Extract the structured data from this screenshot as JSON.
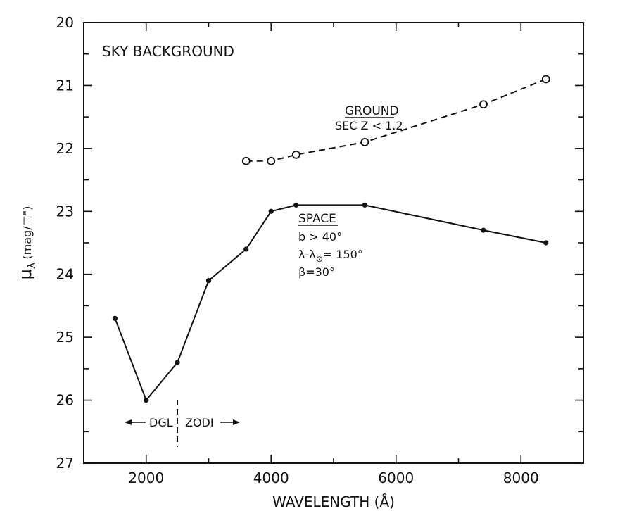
{
  "chart_data": {
    "type": "line",
    "title": "SKY BACKGROUND",
    "xlabel": "WAVELENGTH (Å)",
    "ylabel_symbol": "μ",
    "ylabel_subscript": "λ",
    "ylabel_unit": "(mag/□\")",
    "xlim": [
      1000,
      9000
    ],
    "ylim": [
      20,
      27
    ],
    "y_inverted": true,
    "grid": false,
    "x_ticks": [
      "2000",
      "4000",
      "6000",
      "8000"
    ],
    "x_tick_values": [
      2000,
      4000,
      6000,
      8000
    ],
    "y_ticks": [
      "20",
      "21",
      "22",
      "23",
      "24",
      "25",
      "26",
      "27"
    ],
    "y_tick_values": [
      20,
      21,
      22,
      23,
      24,
      25,
      26,
      27
    ],
    "series": [
      {
        "name": "GROUND",
        "style": "dashed",
        "marker": "open-circle",
        "x": [
          3600,
          4000,
          4400,
          5500,
          7400,
          8400
        ],
        "y": [
          22.2,
          22.2,
          22.1,
          21.9,
          21.3,
          20.9
        ]
      },
      {
        "name": "SPACE",
        "style": "solid",
        "marker": "filled-circle",
        "x": [
          1500,
          2000,
          2500,
          3000,
          3600,
          4000,
          4400,
          5500,
          7400,
          8400
        ],
        "y": [
          24.7,
          26.0,
          25.4,
          24.1,
          23.6,
          23.0,
          22.9,
          22.9,
          23.3,
          23.5
        ]
      }
    ],
    "annotations": {
      "ground_title": "GROUND",
      "ground_cond": "SEC Z < 1.2",
      "space_title": "SPACE",
      "space_cond1": "b > 40°",
      "space_cond2_a": "λ-λ",
      "space_cond2_sub": "⊙",
      "space_cond2_b": "= 150°",
      "space_cond3": "β=30°",
      "dgl": "DGL",
      "zodi": "ZODI",
      "divider_x": 2500
    }
  }
}
